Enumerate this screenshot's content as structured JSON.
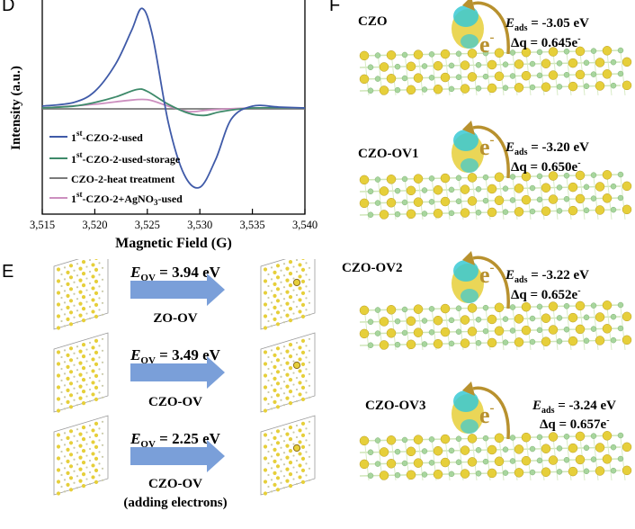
{
  "panels": {
    "D": "D",
    "E": "E",
    "F": "F"
  },
  "colors": {
    "blue": "#3f5aa8",
    "green": "#3e8a6a",
    "gray": "#7a7a7a",
    "pink": "#cc8fbf",
    "arrow": "#7a9fd9",
    "gold": "#b8912e",
    "atom_yellow": "#e6cf3a",
    "atom_green": "#a8d69e",
    "cyan": "#38c9d4"
  },
  "chart_data": {
    "type": "line",
    "xlabel": "Magnetic Field (G)",
    "ylabel": "Intensity (a.u.)",
    "xlim": [
      3515,
      3540
    ],
    "x_ticks": [
      "3,515",
      "3,520",
      "3,525",
      "3,530",
      "3,535",
      "3,540"
    ],
    "grid": false,
    "legend_position": "bottom-left",
    "series": [
      {
        "name_main": "1",
        "name_sup": "st",
        "name_tail": "-CZO-2-used",
        "color": "#3f5aa8",
        "x": [
          3515,
          3518,
          3520,
          3522,
          3523.5,
          3524.5,
          3525.5,
          3527,
          3528.5,
          3530,
          3531.5,
          3533,
          3535,
          3537.5,
          3540
        ],
        "y": [
          0.1,
          0.3,
          0.9,
          2.4,
          4.2,
          5.4,
          3.9,
          -0.8,
          -3.6,
          -4.3,
          -2.8,
          -0.6,
          0.1,
          0.05,
          0.0
        ]
      },
      {
        "name_main": "1",
        "name_sup": "st",
        "name_tail": "-CZO-2-used-storage",
        "color": "#3e8a6a",
        "x": [
          3515,
          3518,
          3520,
          3522,
          3524,
          3525,
          3527,
          3529,
          3530.5,
          3532,
          3535,
          3540
        ],
        "y": [
          0.0,
          0.1,
          0.3,
          0.6,
          1.0,
          0.9,
          0.2,
          -0.3,
          -0.4,
          -0.2,
          0.0,
          0.0
        ]
      },
      {
        "name": "CZO-2-heat treatment",
        "color": "#7a7a7a",
        "x": [
          3515,
          3520,
          3525,
          3530,
          3535,
          3540
        ],
        "y": [
          -0.05,
          -0.05,
          -0.05,
          -0.05,
          -0.05,
          -0.05
        ]
      },
      {
        "name_main": "1",
        "name_sup": "st",
        "name_tail": "-CZO-2+AgNO",
        "name_sub": "3",
        "name_tail2": "-used",
        "color": "#cc8fbf",
        "x": [
          3515,
          3520,
          3523,
          3525,
          3527,
          3529,
          3531,
          3535,
          3540
        ],
        "y": [
          0.0,
          0.2,
          0.4,
          0.45,
          0.1,
          -0.2,
          -0.1,
          0.0,
          0.0
        ]
      }
    ]
  },
  "panel_e": {
    "rows": [
      {
        "e_var": "E",
        "e_sub": "OV",
        "value": " = 3.94 eV",
        "label": "ZO-OV",
        "extra": ""
      },
      {
        "e_var": "E",
        "e_sub": "OV",
        "value": " = 3.49 eV",
        "label": "CZO-OV",
        "extra": ""
      },
      {
        "e_var": "E",
        "e_sub": "OV",
        "value": " = 2.25 eV",
        "label": "CZO-OV",
        "extra": "(adding electrons)"
      }
    ]
  },
  "panel_f": {
    "items": [
      {
        "name": "CZO",
        "e_var": "E",
        "e_sub": "ads",
        "e_val": " = -3.05 eV",
        "dq": "Δq = 0.645e",
        "dq_sup": "-",
        "electron": "e",
        "electron_sup": "-"
      },
      {
        "name": "CZO-OV1",
        "e_var": "E",
        "e_sub": "ads",
        "e_val": " = -3.20 eV",
        "dq": "Δq = 0.650e",
        "dq_sup": "-",
        "electron": "e",
        "electron_sup": "-"
      },
      {
        "name": "CZO-OV2",
        "e_var": "E",
        "e_sub": "ads",
        "e_val": " = -3.22 eV",
        "dq": "Δq = 0.652e",
        "dq_sup": "-",
        "electron": "e",
        "electron_sup": "-"
      },
      {
        "name": "CZO-OV3",
        "e_var": "E",
        "e_sub": "ads",
        "e_val": " = -3.24 eV",
        "dq": "Δq = 0.657e",
        "dq_sup": "-",
        "electron": "e",
        "electron_sup": "-"
      }
    ]
  }
}
